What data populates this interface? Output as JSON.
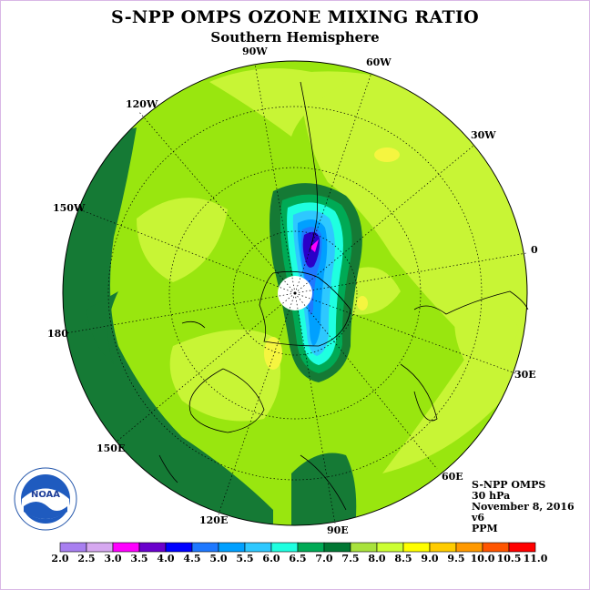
{
  "title": "S-NPP OMPS OZONE MIXING RATIO",
  "subtitle": "Southern Hemisphere",
  "longitude_labels": {
    "l90w": "90W",
    "l60w": "60W",
    "l120w": "120W",
    "l30w": "30W",
    "l150w": "150W",
    "l0": "0",
    "l180": "180",
    "l30e": "30E",
    "l150e": "150E",
    "l60e": "60E",
    "l120e": "120E",
    "l90e": "90E"
  },
  "info": {
    "instrument": "S-NPP OMPS",
    "level": "30 hPa",
    "date": "November 8, 2016",
    "version": "v6",
    "units": "PPM"
  },
  "colorbar": {
    "ticks": [
      "2.0",
      "2.5",
      "3.0",
      "3.5",
      "4.0",
      "4.5",
      "5.0",
      "5.5",
      "6.0",
      "6.5",
      "7.0",
      "7.5",
      "8.0",
      "8.5",
      "9.0",
      "9.5",
      "10.0",
      "10.5",
      "11.0"
    ],
    "colors": [
      "#a87ff0",
      "#d6a8f0",
      "#ff00ff",
      "#6a00cc",
      "#0000ff",
      "#1e78ff",
      "#00a0ff",
      "#2ec8ff",
      "#1fffe0",
      "#00aa55",
      "#007733",
      "#a8e23c",
      "#ccff33",
      "#ffff00",
      "#ffcc00",
      "#ff9900",
      "#ff5500",
      "#ff0000",
      "#8b5a3c"
    ]
  },
  "colors": {
    "dark_green": "#157a35",
    "mid_green": "#99e60f",
    "light_green": "#c8f535",
    "yellow": "#f5f540"
  },
  "logo": {
    "text": "NOAA"
  }
}
